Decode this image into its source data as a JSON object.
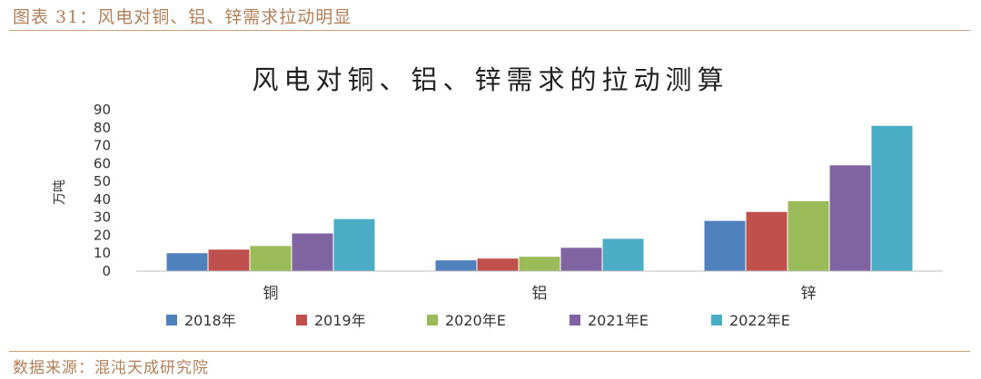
{
  "figure_caption": "图表 31：风电对铜、铝、锌需求拉动明显",
  "source_text": "数据来源：混沌天成研究院",
  "chart_data": {
    "type": "bar",
    "title": "风电对铜、铝、锌需求的拉动测算",
    "ylabel": "万吨",
    "xlabel": "",
    "ylim": [
      0,
      90
    ],
    "yticks": [
      0,
      10,
      20,
      30,
      40,
      50,
      60,
      70,
      80,
      90
    ],
    "grid": false,
    "legend_position": "bottom",
    "categories": [
      "铜",
      "铝",
      "锌"
    ],
    "series": [
      {
        "name": "2018年",
        "color": "#4f81bd",
        "values": [
          10,
          6,
          28
        ]
      },
      {
        "name": "2019年",
        "color": "#c0504d",
        "values": [
          12,
          7,
          33
        ]
      },
      {
        "name": "2020年E",
        "color": "#9bbb59",
        "values": [
          14,
          8,
          39
        ]
      },
      {
        "name": "2021年E",
        "color": "#8064a2",
        "values": [
          21,
          13,
          59
        ]
      },
      {
        "name": "2022年E",
        "color": "#4bacc6",
        "values": [
          29,
          18,
          81
        ]
      }
    ]
  }
}
